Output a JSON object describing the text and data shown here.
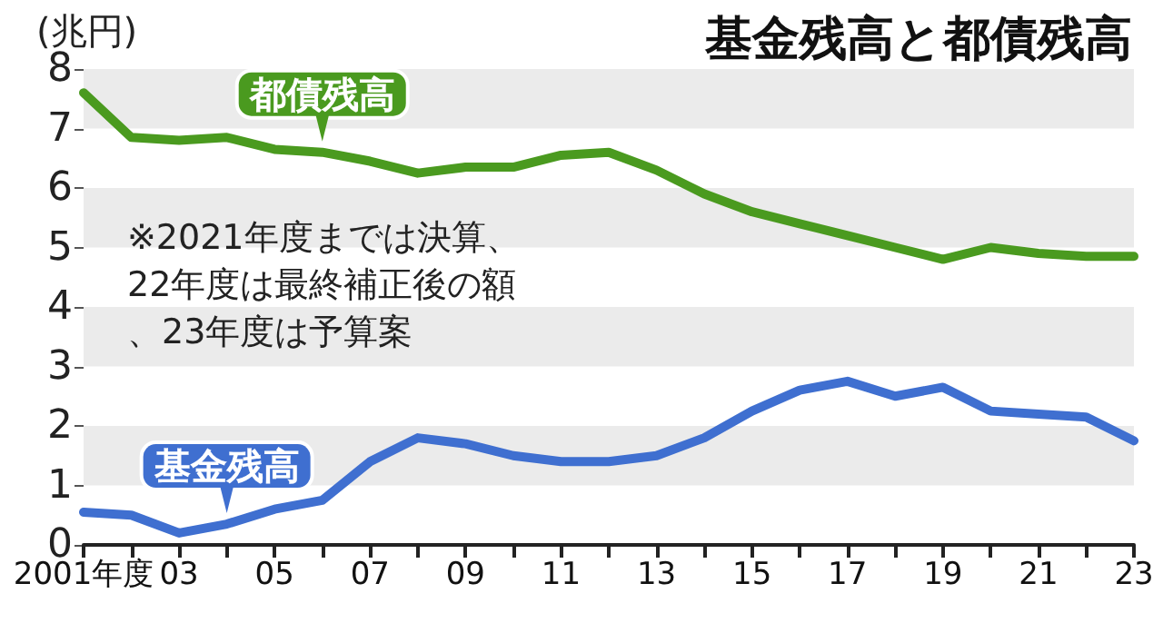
{
  "chart_data": {
    "type": "line",
    "title": "基金残高と都債残高",
    "ylabel": "(兆円)",
    "annotations": [
      "※2021年度までは決算、22年度は最終補正後の額、23年度は予算案"
    ],
    "categories": [
      "2001年度",
      null,
      "03",
      null,
      "05",
      null,
      "07",
      null,
      "09",
      null,
      "11",
      null,
      "13",
      null,
      "15",
      null,
      "17",
      null,
      "19",
      null,
      "21",
      null,
      "23"
    ],
    "series": [
      {
        "name": "都債残高",
        "color": "#4a9a1f",
        "values": [
          7.6,
          6.85,
          6.8,
          6.85,
          6.65,
          6.6,
          6.45,
          6.25,
          6.35,
          6.35,
          6.55,
          6.6,
          6.3,
          5.9,
          5.6,
          5.4,
          5.2,
          5.0,
          4.8,
          5.0,
          4.9,
          4.85,
          4.85
        ]
      },
      {
        "name": "基金残高",
        "color": "#3f6fd0",
        "values": [
          0.55,
          0.5,
          0.2,
          0.35,
          0.6,
          0.75,
          1.4,
          1.8,
          1.7,
          1.5,
          1.4,
          1.4,
          1.5,
          1.8,
          2.25,
          2.6,
          2.75,
          2.5,
          2.65,
          2.25,
          2.2,
          2.15,
          1.75
        ]
      }
    ],
    "ylim": [
      0,
      8
    ],
    "yticks": [
      0,
      1,
      2,
      3,
      4,
      5,
      6,
      7,
      8
    ],
    "bands": [
      {
        "axis": "y",
        "from": 1,
        "to": 2,
        "color": "#ebebeb"
      },
      {
        "axis": "y",
        "from": 3,
        "to": 4,
        "color": "#ebebeb"
      },
      {
        "axis": "y",
        "from": 5,
        "to": 6,
        "color": "#ebebeb"
      },
      {
        "axis": "y",
        "from": 7,
        "to": 8,
        "color": "#ebebeb"
      }
    ],
    "grid": false,
    "legend": false,
    "marker": "none",
    "line_style": "solid"
  }
}
